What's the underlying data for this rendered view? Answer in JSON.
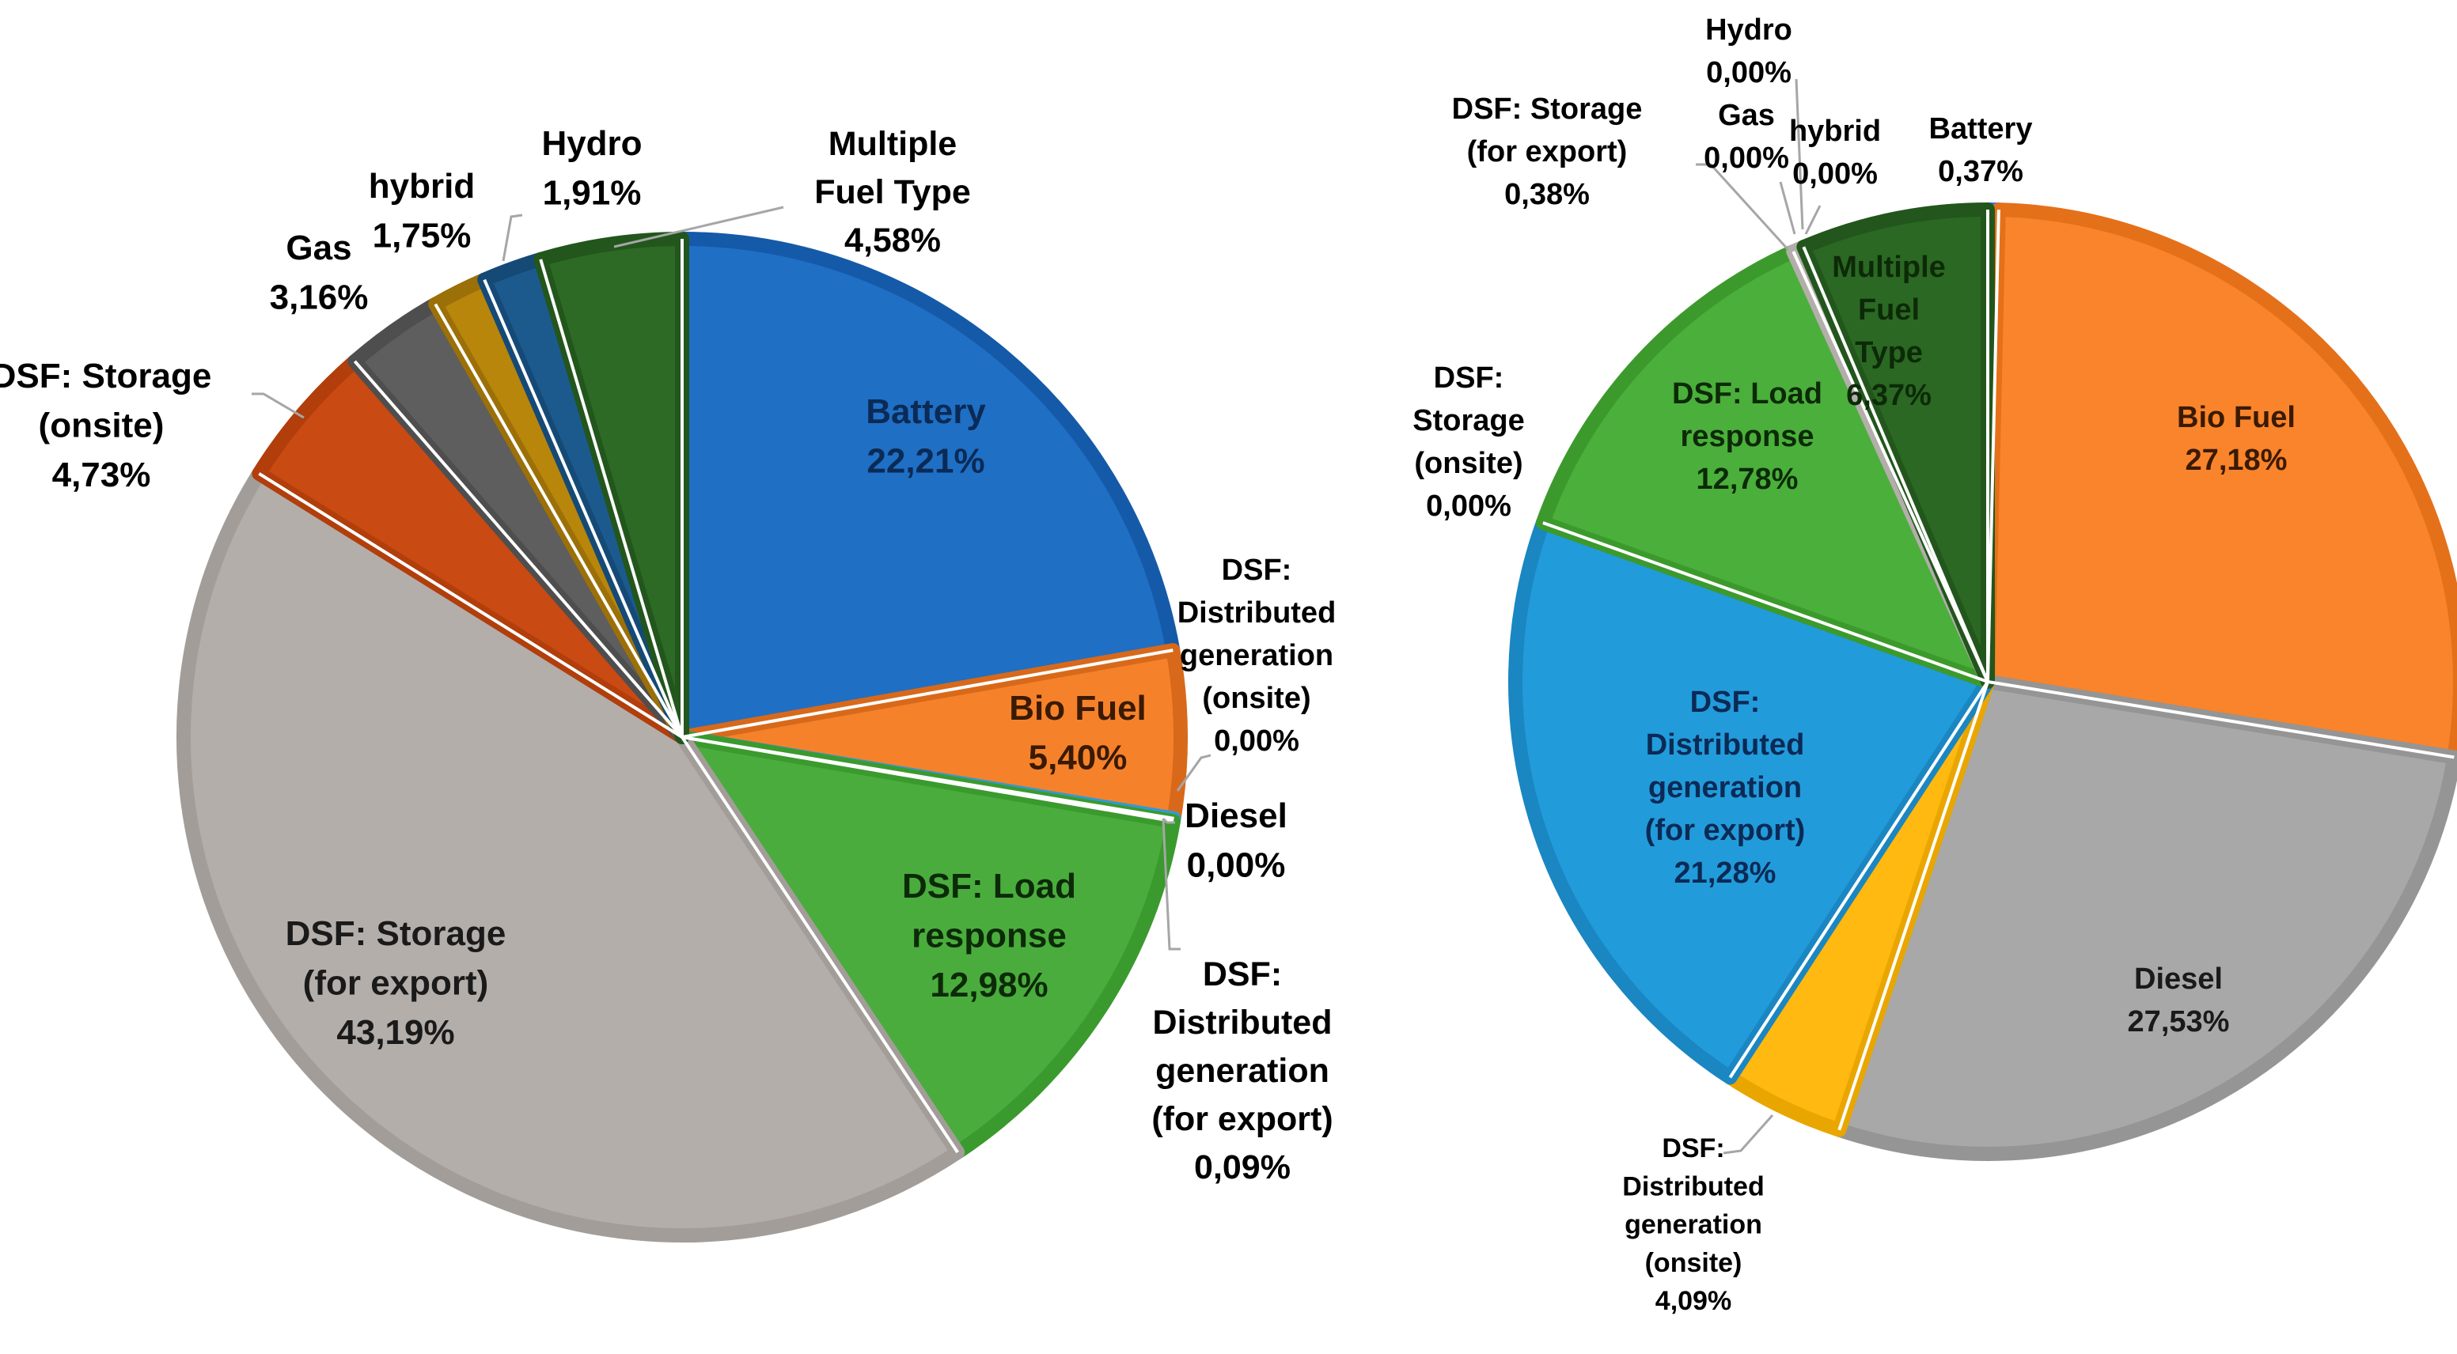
{
  "chart_data": [
    {
      "type": "pie",
      "title": "",
      "slices": [
        {
          "label": "Battery",
          "value": 22.21,
          "display": "22,21%",
          "color": "#1F6FC5",
          "edge": "#155AA8",
          "text_color": "#0B2A55"
        },
        {
          "label": "Bio Fuel",
          "value": 5.4,
          "display": "5,40%",
          "color": "#F5822B",
          "edge": "#D8691A",
          "text_color": "#3A1A02"
        },
        {
          "label": "DSF: Distributed generation (onsite)",
          "value": 0.0,
          "display": "0,00%",
          "color": "#4F8EDB",
          "edge": "#4F8EDB",
          "text_color": "#000000"
        },
        {
          "label": "Diesel",
          "value": 0.0,
          "display": "0,00%",
          "color": "#A5A5A5",
          "edge": "#A5A5A5",
          "text_color": "#000000"
        },
        {
          "label": "DSF: Distributed generation (for export)",
          "value": 0.09,
          "display": "0,09%",
          "color": "#2F9AD8",
          "edge": "#2F9AD8",
          "text_color": "#000000"
        },
        {
          "label": "DSF: Load response",
          "value": 12.98,
          "display": "12,98%",
          "color": "#4AAC3D",
          "edge": "#3A9A2E",
          "text_color": "#0C2A08"
        },
        {
          "label": "DSF: Storage (for export)",
          "value": 43.19,
          "display": "43,19%",
          "color": "#B3AEAA",
          "edge": "#A29D99",
          "text_color": "#1A1A1A"
        },
        {
          "label": "DSF: Storage (onsite)",
          "value": 4.73,
          "display": "4,73%",
          "color": "#C94A12",
          "edge": "#B13E0B",
          "text_color": "#000000"
        },
        {
          "label": "Gas",
          "value": 3.16,
          "display": "3,16%",
          "color": "#5E5E5E",
          "edge": "#4E4E4E",
          "text_color": "#000000"
        },
        {
          "label": "hybrid",
          "value": 1.75,
          "display": "1,75%",
          "color": "#B8860B",
          "edge": "#9C7008",
          "text_color": "#000000"
        },
        {
          "label": "Hydro",
          "value": 1.91,
          "display": "1,91%",
          "color": "#1C5A8E",
          "edge": "#154A77",
          "text_color": "#000000"
        },
        {
          "label": "Multiple Fuel Type",
          "value": 4.58,
          "display": "4,58%",
          "color": "#2C6A25",
          "edge": "#22561C",
          "text_color": "#000000"
        }
      ]
    },
    {
      "type": "pie",
      "title": "",
      "slices": [
        {
          "label": "Battery",
          "value": 0.37,
          "display": "0,37%",
          "color": "#2E75D6",
          "edge": "#2E75D6",
          "text_color": "#000000"
        },
        {
          "label": "Bio Fuel",
          "value": 27.18,
          "display": "27,18%",
          "color": "#F9842B",
          "edge": "#E5701A",
          "text_color": "#3A1A02"
        },
        {
          "label": "Diesel",
          "value": 27.53,
          "display": "27,53%",
          "color": "#A8A8A8",
          "edge": "#959595",
          "text_color": "#1A1A1A"
        },
        {
          "label": "DSF: Distributed generation (onsite)",
          "value": 4.09,
          "display": "4,09%",
          "color": "#FFB910",
          "edge": "#E9A600",
          "text_color": "#000000"
        },
        {
          "label": "DSF: Distributed generation (for export)",
          "value": 21.28,
          "display": "21,28%",
          "color": "#229BDA",
          "edge": "#1A86C2",
          "text_color": "#0B2A55"
        },
        {
          "label": "DSF: Load response",
          "value": 12.78,
          "display": "12,78%",
          "color": "#4BAF3B",
          "edge": "#3C9A2D",
          "text_color": "#0C2A08"
        },
        {
          "label": "DSF: Storage (onsite)",
          "value": 0.0,
          "display": "0,00%",
          "color": "#8A5A2B",
          "edge": "#8A5A2B",
          "text_color": "#000000"
        },
        {
          "label": "DSF: Storage (for export)",
          "value": 0.38,
          "display": "0,38%",
          "color": "#B3AEAA",
          "edge": "#B3AEAA",
          "text_color": "#000000"
        },
        {
          "label": "Gas",
          "value": 0.0,
          "display": "0,00%",
          "color": "#666666",
          "edge": "#666666",
          "text_color": "#000000"
        },
        {
          "label": "Hydro",
          "value": 0.0,
          "display": "0,00%",
          "color": "#1C5A8E",
          "edge": "#1C5A8E",
          "text_color": "#000000"
        },
        {
          "label": "hybrid",
          "value": 0.0,
          "display": "0,00%",
          "color": "#B8860B",
          "edge": "#B8860B",
          "text_color": "#000000"
        },
        {
          "label": "Multiple Fuel Type",
          "value": 6.37,
          "display": "6,37%",
          "color": "#2B6823",
          "edge": "#22561C",
          "text_color": "#0C2A08"
        }
      ]
    }
  ],
  "label_text": {
    "left": [
      {
        "lines": [
          "Battery",
          "22,21%"
        ]
      },
      {
        "lines": [
          "Bio Fuel",
          "5,40%"
        ]
      },
      {
        "lines": [
          "DSF:",
          "Distributed",
          "generation",
          "(onsite)",
          "0,00%"
        ]
      },
      {
        "lines": [
          "Diesel",
          "0,00%"
        ]
      },
      {
        "lines": [
          "DSF:",
          "Distributed",
          "generation",
          "(for export)",
          "0,09%"
        ]
      },
      {
        "lines": [
          "DSF: Load",
          "response",
          "12,98%"
        ]
      },
      {
        "lines": [
          "DSF: Storage",
          "(for export)",
          "43,19%"
        ]
      },
      {
        "lines": [
          "DSF: Storage",
          "(onsite)",
          "4,73%"
        ]
      },
      {
        "lines": [
          "Gas",
          "3,16%"
        ]
      },
      {
        "lines": [
          "hybrid",
          "1,75%"
        ]
      },
      {
        "lines": [
          "Hydro",
          "1,91%"
        ]
      },
      {
        "lines": [
          "Multiple",
          "Fuel Type",
          "4,58%"
        ]
      }
    ],
    "right": [
      {
        "lines": [
          "Battery",
          "0,37%"
        ]
      },
      {
        "lines": [
          "Bio Fuel",
          "27,18%"
        ]
      },
      {
        "lines": [
          "Diesel",
          "27,53%"
        ]
      },
      {
        "lines": [
          "DSF:",
          "Distributed",
          "generation",
          "(onsite)",
          "4,09%"
        ]
      },
      {
        "lines": [
          "DSF:",
          "Distributed",
          "generation",
          "(for export)",
          "21,28%"
        ]
      },
      {
        "lines": [
          "DSF: Load",
          "response",
          "12,78%"
        ]
      },
      {
        "lines": [
          "DSF:",
          "Storage",
          "(onsite)",
          "0,00%"
        ]
      },
      {
        "lines": [
          "DSF: Storage",
          "(for export)",
          "0,38%"
        ]
      },
      {
        "lines": [
          "Gas",
          "0,00%"
        ]
      },
      {
        "lines": [
          "Hydro",
          "0,00%"
        ]
      },
      {
        "lines": [
          "hybrid",
          "0,00%"
        ]
      },
      {
        "lines": [
          "Multiple",
          "Fuel",
          "Type",
          "6,37%"
        ]
      }
    ]
  }
}
